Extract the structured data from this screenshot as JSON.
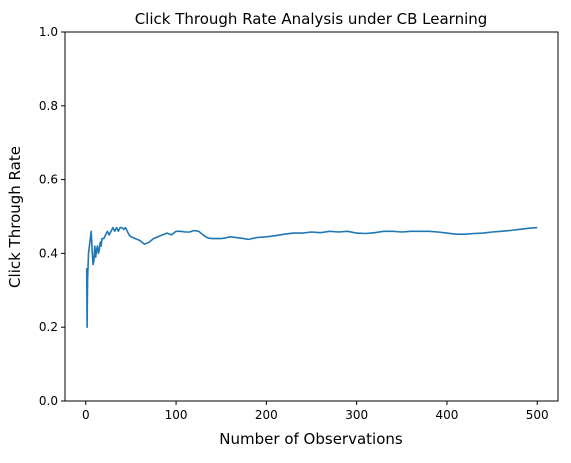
{
  "chart_data": {
    "type": "line",
    "title": "Click Through Rate Analysis under CB Learning",
    "xlabel": "Number of Observations",
    "ylabel": "Click Through Rate",
    "xlim": [
      -23,
      523
    ],
    "ylim": [
      0.0,
      1.0
    ],
    "xticks": [
      "0",
      "100",
      "200",
      "300",
      "400",
      "500"
    ],
    "yticks": [
      "0.0",
      "0.2",
      "0.4",
      "0.6",
      "0.8",
      "1.0"
    ],
    "grid": false,
    "legend": "none",
    "series": [
      {
        "color": "#1f77b4",
        "x": [
          1,
          1.5,
          2,
          3,
          4,
          5,
          6,
          7,
          8,
          9,
          10,
          11,
          12,
          13,
          14,
          15,
          16,
          17,
          18,
          20,
          22,
          24,
          26,
          28,
          30,
          32,
          34,
          36,
          38,
          40,
          42,
          44,
          46,
          48,
          50,
          55,
          60,
          65,
          70,
          75,
          80,
          85,
          90,
          95,
          100,
          105,
          110,
          115,
          120,
          125,
          130,
          135,
          140,
          145,
          150,
          155,
          160,
          170,
          175,
          180,
          190,
          200,
          210,
          220,
          230,
          240,
          250,
          260,
          270,
          280,
          290,
          300,
          310,
          320,
          330,
          340,
          350,
          360,
          370,
          380,
          390,
          400,
          410,
          420,
          430,
          440,
          450,
          460,
          470,
          480,
          490,
          500
        ],
        "y": [
          0.36,
          0.2,
          0.33,
          0.4,
          0.42,
          0.44,
          0.46,
          0.41,
          0.37,
          0.38,
          0.42,
          0.39,
          0.41,
          0.42,
          0.4,
          0.41,
          0.43,
          0.42,
          0.44,
          0.44,
          0.45,
          0.46,
          0.45,
          0.46,
          0.47,
          0.46,
          0.47,
          0.46,
          0.47,
          0.47,
          0.465,
          0.47,
          0.46,
          0.45,
          0.445,
          0.44,
          0.435,
          0.425,
          0.43,
          0.44,
          0.445,
          0.45,
          0.455,
          0.45,
          0.46,
          0.46,
          0.458,
          0.458,
          0.462,
          0.46,
          0.45,
          0.442,
          0.44,
          0.44,
          0.44,
          0.442,
          0.445,
          0.442,
          0.44,
          0.438,
          0.443,
          0.445,
          0.448,
          0.452,
          0.455,
          0.455,
          0.458,
          0.456,
          0.46,
          0.458,
          0.46,
          0.455,
          0.454,
          0.456,
          0.46,
          0.46,
          0.458,
          0.46,
          0.46,
          0.46,
          0.458,
          0.455,
          0.452,
          0.452,
          0.454,
          0.455,
          0.458,
          0.46,
          0.462,
          0.465,
          0.468,
          0.47
        ]
      }
    ]
  }
}
